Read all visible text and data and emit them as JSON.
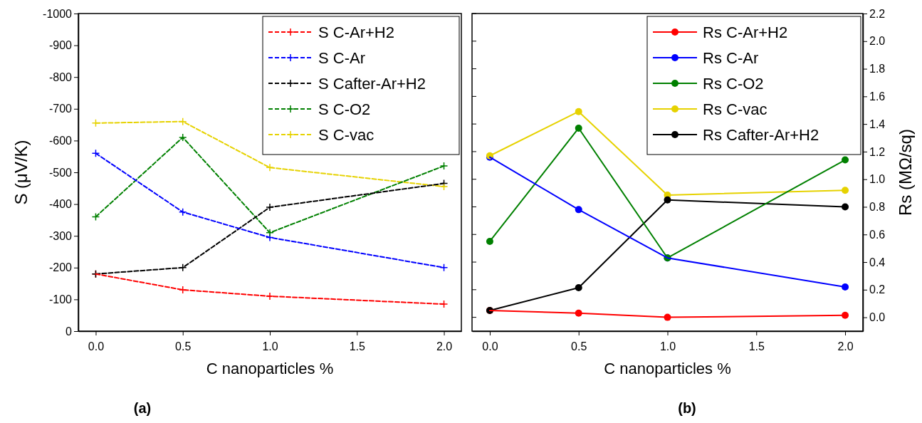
{
  "chart_data": [
    {
      "type": "line",
      "xlabel": "C nanoparticles %",
      "ylabel": "S (μV/K)",
      "x": [
        0,
        0.5,
        1,
        2
      ],
      "xlim": [
        -0.1,
        2.1
      ],
      "xticks": [
        {
          "value": 0,
          "label": "0.0"
        },
        {
          "value": 0.5,
          "label": "0.5"
        },
        {
          "value": 1,
          "label": "1.0"
        },
        {
          "value": 1.5,
          "label": "1.5"
        },
        {
          "value": 2,
          "label": "2.0"
        }
      ],
      "ylim": [
        0,
        -1000
      ],
      "yticks": [
        0,
        -100,
        -200,
        -300,
        -400,
        -500,
        -600,
        -700,
        -800,
        -900,
        -1000
      ],
      "marker": "cross",
      "line_style": "dashed",
      "legend": "top right",
      "annotations": [
        "(a)"
      ],
      "series": [
        {
          "name": "S C-Ar+H2",
          "color": "#ff0000",
          "values": [
            -180,
            -130,
            -110,
            -85
          ]
        },
        {
          "name": "S C-Ar",
          "color": "#0000ff",
          "values": [
            -560,
            -375,
            -295,
            -200
          ]
        },
        {
          "name": "S Cafter-Ar+H2",
          "color": "#000000",
          "values": [
            -180,
            -200,
            -390,
            -465
          ]
        },
        {
          "name": "S C-O2",
          "color": "#008000",
          "values": [
            -360,
            -610,
            -310,
            -520
          ]
        },
        {
          "name": "S C-vac",
          "color": "#e6d200",
          "values": [
            -655,
            -660,
            -515,
            -455
          ]
        }
      ]
    },
    {
      "type": "line",
      "xlabel": "C nanoparticles %",
      "y2label": "Rs (MΩ/sq)",
      "x": [
        0,
        0.5,
        1,
        2
      ],
      "xlim": [
        -0.1,
        2.1
      ],
      "xticks": [
        {
          "value": 0,
          "label": "0.0"
        },
        {
          "value": 0.5,
          "label": "0.5"
        },
        {
          "value": 1,
          "label": "1.0"
        },
        {
          "value": 1.5,
          "label": "1.5"
        },
        {
          "value": 2,
          "label": "2.0"
        }
      ],
      "y2lim": [
        -0.1,
        2.2
      ],
      "y2ticks": [
        {
          "value": 0,
          "label": "0.0"
        },
        {
          "value": 0.2,
          "label": "0.2"
        },
        {
          "value": 0.4,
          "label": "0.4"
        },
        {
          "value": 0.6,
          "label": "0.6"
        },
        {
          "value": 0.8,
          "label": "0.8"
        },
        {
          "value": 1,
          "label": "1.0"
        },
        {
          "value": 1.2,
          "label": "1.2"
        },
        {
          "value": 1.4,
          "label": "1.4"
        },
        {
          "value": 1.6,
          "label": "1.6"
        },
        {
          "value": 1.8,
          "label": "1.8"
        },
        {
          "value": 2,
          "label": "2.0"
        },
        {
          "value": 2.2,
          "label": "2.2"
        }
      ],
      "marker": "circle",
      "line_style": "solid",
      "legend": "top right",
      "annotations": [
        "(b)"
      ],
      "series": [
        {
          "name": "Rs C-Ar+H2",
          "color": "#ff0000",
          "axis": "y2",
          "values": [
            0.05,
            0.03,
            0.0,
            0.015
          ]
        },
        {
          "name": "Rs C-Ar",
          "color": "#0000ff",
          "axis": "y2",
          "values": [
            1.16,
            0.78,
            0.43,
            0.22
          ]
        },
        {
          "name": "Rs C-O2",
          "color": "#008000",
          "axis": "y2",
          "values": [
            0.55,
            1.37,
            0.43,
            1.14
          ]
        },
        {
          "name": "Rs C-vac",
          "color": "#e6d200",
          "axis": "y2",
          "values": [
            1.17,
            1.49,
            0.885,
            0.92
          ]
        },
        {
          "name": "Rs Cafter-Ar+H2",
          "color": "#000000",
          "axis": "y2",
          "values": [
            0.05,
            0.215,
            0.85,
            0.8
          ]
        }
      ]
    }
  ]
}
